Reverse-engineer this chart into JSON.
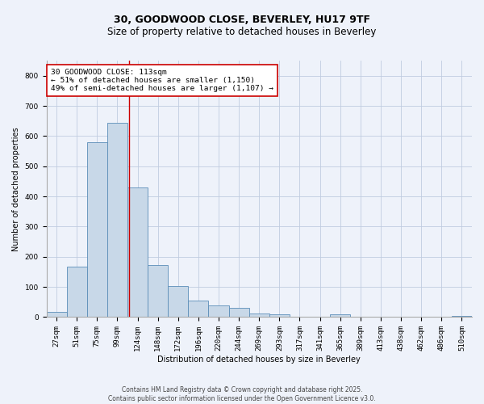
{
  "title_line1": "30, GOODWOOD CLOSE, BEVERLEY, HU17 9TF",
  "title_line2": "Size of property relative to detached houses in Beverley",
  "xlabel": "Distribution of detached houses by size in Beverley",
  "ylabel": "Number of detached properties",
  "bar_labels": [
    "27sqm",
    "51sqm",
    "75sqm",
    "99sqm",
    "124sqm",
    "148sqm",
    "172sqm",
    "196sqm",
    "220sqm",
    "244sqm",
    "269sqm",
    "293sqm",
    "317sqm",
    "341sqm",
    "365sqm",
    "389sqm",
    "413sqm",
    "438sqm",
    "462sqm",
    "486sqm",
    "510sqm"
  ],
  "bar_values": [
    17,
    167,
    580,
    645,
    430,
    172,
    103,
    55,
    38,
    30,
    13,
    10,
    0,
    0,
    8,
    0,
    0,
    0,
    0,
    0,
    5
  ],
  "bar_color": "#c8d8e8",
  "bar_edgecolor": "#5b8db8",
  "grid_color": "#c0cce0",
  "bg_color": "#eef2fa",
  "vline_x": 3.56,
  "vline_color": "#cc0000",
  "annotation_text": "30 GOODWOOD CLOSE: 113sqm\n← 51% of detached houses are smaller (1,150)\n49% of semi-detached houses are larger (1,107) →",
  "annotation_box_color": "#ffffff",
  "annotation_box_edgecolor": "#cc0000",
  "ylim": [
    0,
    850
  ],
  "yticks": [
    0,
    100,
    200,
    300,
    400,
    500,
    600,
    700,
    800
  ],
  "footer_text": "Contains HM Land Registry data © Crown copyright and database right 2025.\nContains public sector information licensed under the Open Government Licence v3.0.",
  "title_fontsize": 9,
  "subtitle_fontsize": 8.5,
  "axis_label_fontsize": 7,
  "tick_fontsize": 6.5,
  "annotation_fontsize": 6.8,
  "footer_fontsize": 5.5
}
